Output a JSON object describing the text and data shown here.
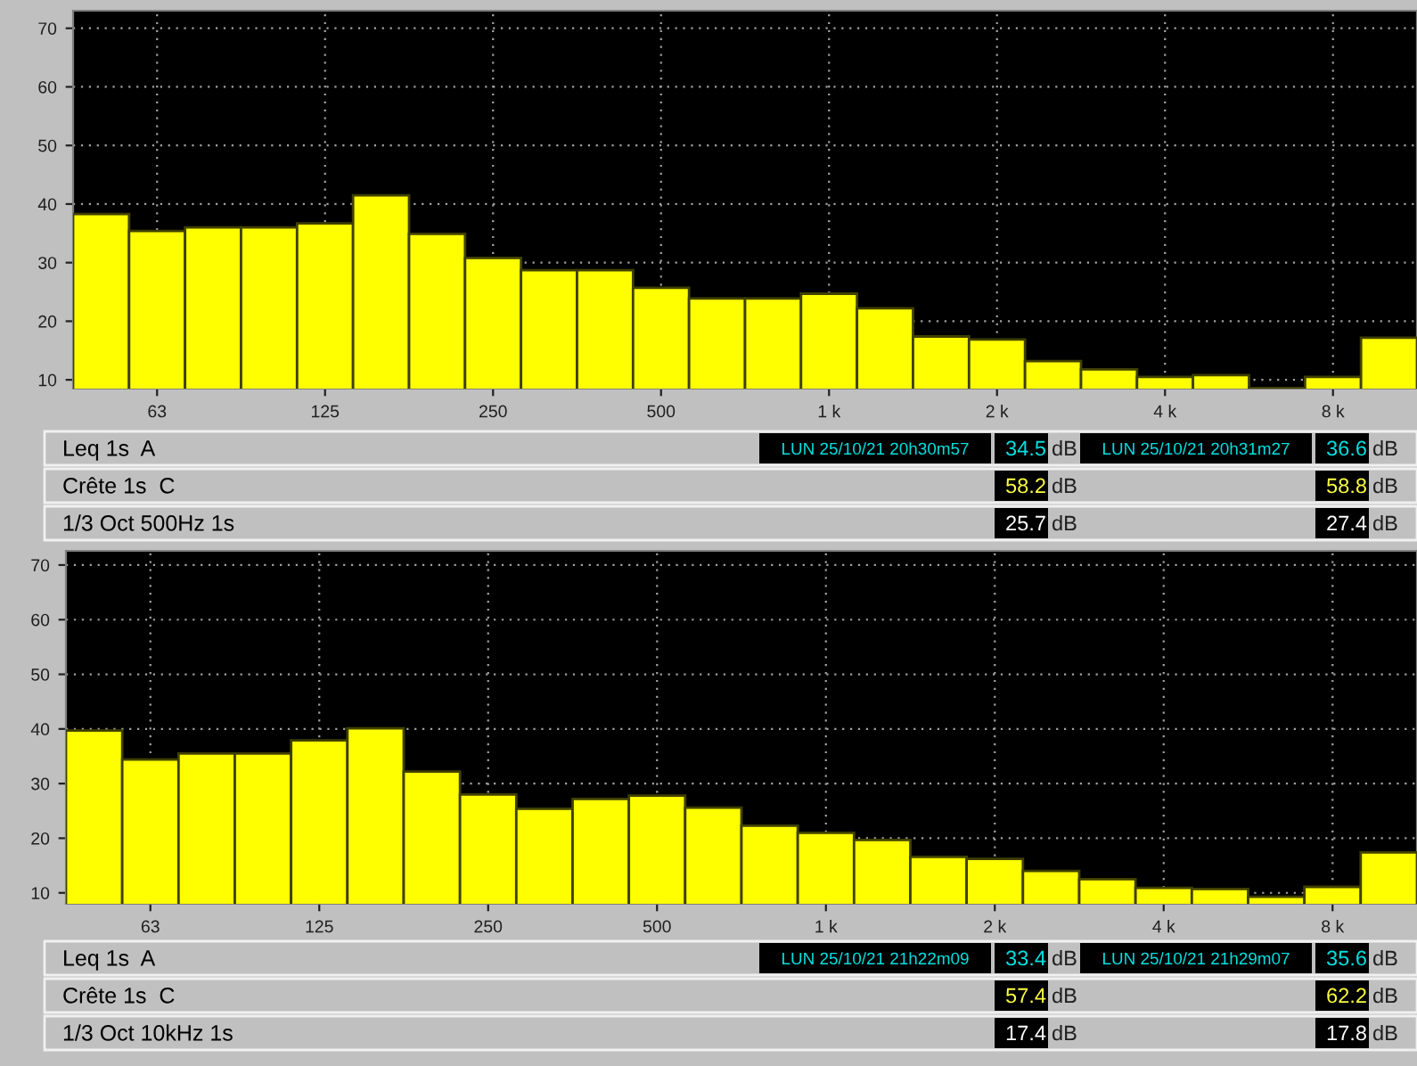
{
  "chart_data": [
    {
      "type": "bar",
      "categories": [
        null,
        "63",
        null,
        null,
        "125",
        null,
        null,
        "250",
        null,
        null,
        "500",
        null,
        null,
        "1 k",
        null,
        null,
        "2 k",
        null,
        null,
        "4 k",
        null,
        null,
        "8 k",
        null
      ],
      "values": [
        38.3,
        35.4,
        36.0,
        36.0,
        36.7,
        41.5,
        34.9,
        30.8,
        28.7,
        28.7,
        25.7,
        23.9,
        23.9,
        24.7,
        22.2,
        17.4,
        16.9,
        13.2,
        11.8,
        10.5,
        10.8,
        8.6,
        10.5,
        17.2
      ],
      "color": "#ffff00",
      "ylim": [
        8.5,
        73
      ],
      "yticks": [
        10,
        20,
        30,
        40,
        50,
        60,
        70
      ],
      "grid": true,
      "annotations": [
        "Leq 1s  A",
        "LUN 25/10/21 20h30m57",
        "34.5",
        "dB",
        "LUN 25/10/21 20h31m27",
        "36.6",
        "dB",
        "Crête 1s  C",
        "58.2",
        "dB",
        "58.8",
        "dB",
        "1/3 Oct 500Hz 1s",
        "25.7",
        "dB",
        "27.4",
        "dB"
      ]
    },
    {
      "type": "bar",
      "categories": [
        null,
        "63",
        null,
        null,
        "125",
        null,
        null,
        "250",
        null,
        null,
        "500",
        null,
        null,
        "1 k",
        null,
        null,
        "2 k",
        null,
        null,
        "4 k",
        null,
        null,
        "8 k",
        null
      ],
      "values": [
        39.7,
        34.4,
        35.5,
        35.5,
        37.9,
        40.1,
        32.2,
        28.0,
        25.4,
        27.2,
        27.8,
        25.6,
        22.3,
        21.0,
        19.7,
        16.6,
        16.2,
        14.0,
        12.5,
        10.9,
        10.7,
        9.3,
        11.1,
        17.4
      ],
      "color": "#ffff00",
      "ylim": [
        8.0,
        72.6
      ],
      "yticks": [
        10,
        20,
        30,
        40,
        50,
        60,
        70
      ],
      "grid": true,
      "annotations": [
        "Leq 1s  A",
        "LUN 25/10/21 21h22m09",
        "33.4",
        "dB",
        "LUN 25/10/21 21h29m07",
        "35.6",
        "dB",
        "Crête 1s  C",
        "57.4",
        "dB",
        "62.2",
        "dB",
        "1/3 Oct 10kHz 1s",
        "17.4",
        "dB",
        "17.8",
        "dB"
      ]
    }
  ]
}
